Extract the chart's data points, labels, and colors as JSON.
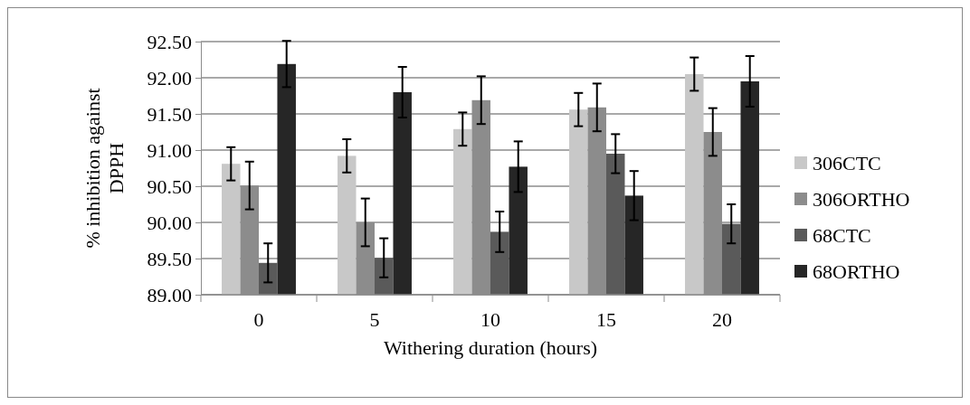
{
  "chart_data": {
    "type": "bar",
    "xlabel": "Withering duration (hours)",
    "ylabel": "% inhibition against DPPH",
    "categories": [
      "0",
      "5",
      "10",
      "15",
      "20"
    ],
    "series": [
      {
        "name": "306CTC",
        "color": "#c8c8c8",
        "values": [
          90.81,
          90.92,
          91.29,
          91.56,
          92.05
        ],
        "errors": [
          0.23,
          0.23,
          0.23,
          0.23,
          0.23
        ]
      },
      {
        "name": "306ORTHO",
        "color": "#8c8c8c",
        "values": [
          90.51,
          90.0,
          91.69,
          91.59,
          91.25
        ],
        "errors": [
          0.33,
          0.33,
          0.33,
          0.33,
          0.33
        ]
      },
      {
        "name": "68CTC",
        "color": "#5a5a5a",
        "values": [
          89.44,
          89.51,
          89.87,
          90.95,
          89.98
        ],
        "errors": [
          0.27,
          0.27,
          0.28,
          0.27,
          0.27
        ]
      },
      {
        "name": "68ORTHO",
        "color": "#262626",
        "values": [
          92.19,
          91.8,
          90.77,
          90.37,
          91.95
        ],
        "errors": [
          0.32,
          0.35,
          0.35,
          0.34,
          0.35
        ]
      }
    ],
    "ylim": [
      89,
      92.5
    ],
    "yticks": [
      {
        "value": 89,
        "label": "89.00"
      },
      {
        "value": 89.5,
        "label": "89.50"
      },
      {
        "value": 90,
        "label": "90.00"
      },
      {
        "value": 90.5,
        "label": "90.50"
      },
      {
        "value": 91,
        "label": "91.00"
      },
      {
        "value": 91.5,
        "label": "91.50"
      },
      {
        "value": 92,
        "label": "92.00"
      },
      {
        "value": 92.5,
        "label": "92.50"
      }
    ],
    "grid": "y",
    "legend": "right"
  }
}
